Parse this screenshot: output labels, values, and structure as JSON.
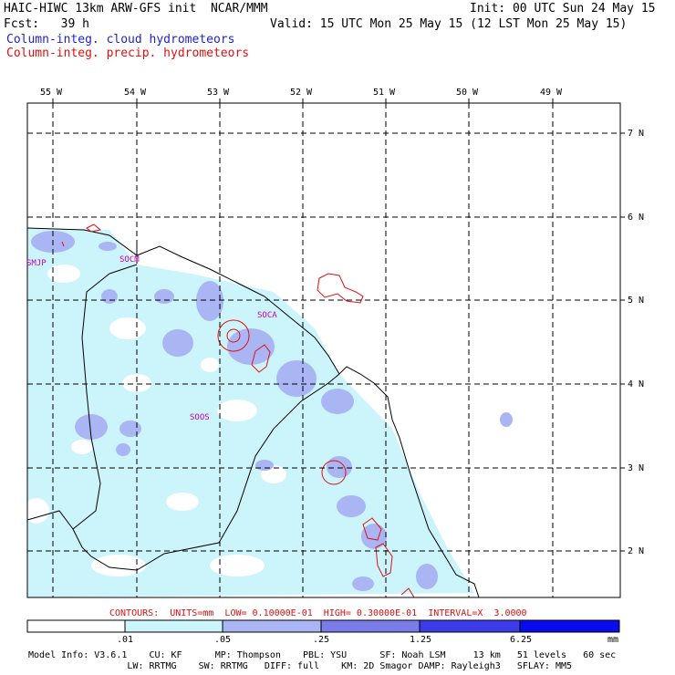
{
  "header": {
    "model_title": "HAIC-HIWC 13km ARW-GFS init  NCAR/MMM",
    "init": "Init: 00 UTC Sun 24 May 15",
    "fcst": "Fcst:   39 h",
    "valid": "Valid: 15 UTC Mon 25 May 15 (12 LST Mon 25 May 15)",
    "field1": "Column-integ. cloud hydrometeors",
    "field2": "Column-integ. precip. hydrometeors"
  },
  "map": {
    "lon_labels": [
      "55 W",
      "54 W",
      "53 W",
      "52 W",
      "51 W",
      "50 W",
      "49 W"
    ],
    "lat_labels": [
      "7 N",
      "6 N",
      "5 N",
      "4 N",
      "3 N",
      "2 N"
    ],
    "stations": [
      "SMJP",
      "SOCM",
      "SOCA",
      "SOOS"
    ]
  },
  "contours_line": "CONTOURS:  UNITS=mm  LOW= 0.10000E-01  HIGH= 0.30000E-01  INTERVAL=X  3.0000",
  "colorbar": {
    "ticks": [
      ".01",
      ".05",
      ".25",
      "1.25",
      "6.25"
    ],
    "unit": "mm",
    "colors": [
      "#ffffff",
      "#ccf4fb",
      "#aab5f4",
      "#7a7de8",
      "#3b3be8",
      "#0a0aee"
    ]
  },
  "footer": {
    "line1": "Model Info: V3.6.1    CU: KF      MP: Thompson    PBL: YSU      SF: Noah LSM     13 km   51 levels   60 sec",
    "line2": "                  LW: RRTMG    SW: RRTMG   DIFF: full    KM: 2D Smagor DAMP: Rayleigh3   SFLAY: MM5"
  }
}
